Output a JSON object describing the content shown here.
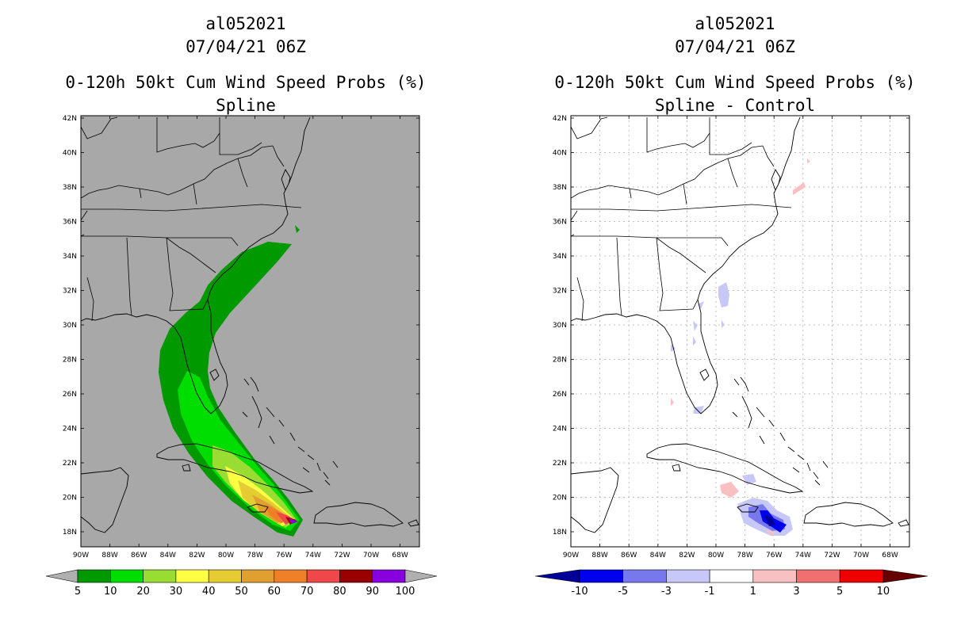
{
  "left_panel": {
    "title_lines": [
      "al052021",
      "07/04/21 06Z",
      "0-120h 50kt Cum Wind Speed Probs (%)",
      "Spline"
    ]
  },
  "right_panel": {
    "title_lines": [
      "al052021",
      "07/04/21 06Z",
      "0-120h 50kt Cum Wind Speed Probs (%)",
      "Spline - Control"
    ]
  },
  "axes": {
    "lat_labels": [
      "42N",
      "40N",
      "38N",
      "36N",
      "34N",
      "32N",
      "30N",
      "28N",
      "26N",
      "24N",
      "22N",
      "20N",
      "18N"
    ],
    "lon_labels": [
      "90W",
      "88W",
      "86W",
      "84W",
      "82W",
      "80W",
      "78W",
      "76W",
      "74W",
      "72W",
      "70W",
      "68W"
    ]
  },
  "left_colorbar": {
    "labels": [
      "5",
      "10",
      "20",
      "30",
      "40",
      "50",
      "60",
      "70",
      "80",
      "90",
      "100"
    ],
    "colors": [
      "#009900",
      "#00dd00",
      "#99dd33",
      "#ffff44",
      "#e6cc33",
      "#e0a030",
      "#f08028",
      "#f04848",
      "#990000",
      "#8800dd"
    ],
    "extension_color": "#b0b0b0"
  },
  "right_colorbar": {
    "labels": [
      "-10",
      "-5",
      "-3",
      "-1",
      "1",
      "3",
      "5",
      "10"
    ],
    "colors": [
      "#000099",
      "#0000ee",
      "#7878ee",
      "#c8c8f8",
      "#ffffff",
      "#f8c0c0",
      "#f07070",
      "#ee0000",
      "#660000"
    ]
  },
  "colors": {
    "map_background_left": "#a8a8a8",
    "map_background_right": "#ffffff",
    "coastline": "#000000"
  }
}
